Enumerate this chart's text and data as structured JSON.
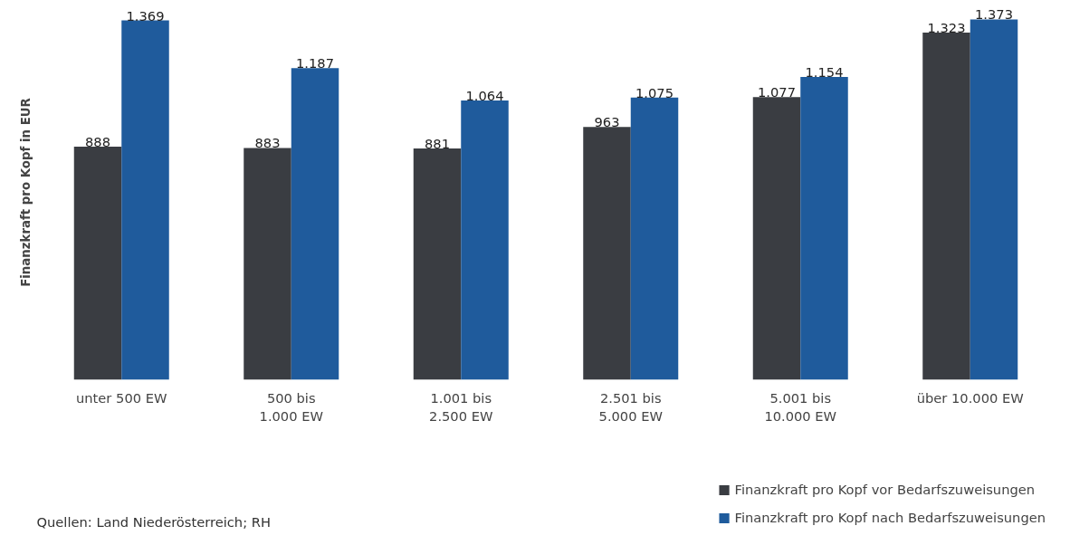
{
  "chart_data": {
    "type": "bar",
    "ylabel": "Finanzkraft pro Kopf in EUR",
    "categories": [
      "unter 500 EW",
      "500 bis\n1.000 EW",
      "1.001 bis\n2.500 EW",
      "2.501 bis\n5.000 EW",
      "5.001 bis\n10.000 EW",
      "über 10.000 EW"
    ],
    "series": [
      {
        "name": "Finanzkraft pro Kopf vor Bedarfszuweisungen",
        "color": "#3a3d42",
        "values": [
          888,
          883,
          881,
          963,
          1077,
          1323
        ],
        "value_labels": [
          "888",
          "883",
          "881",
          "963",
          "1.077",
          "1.323"
        ]
      },
      {
        "name": "Finanzkraft pro Kopf nach Bedarfszuweisungen",
        "color": "#1f5b9c",
        "values": [
          1369,
          1187,
          1064,
          1075,
          1154,
          1373
        ],
        "value_labels": [
          "1.369",
          "1.187",
          "1.064",
          "1.075",
          "1.154",
          "1.373"
        ]
      }
    ],
    "legend": "bottom right",
    "grid": false,
    "annotations": [
      "Quellen: Land Niederösterreich; RH"
    ]
  }
}
